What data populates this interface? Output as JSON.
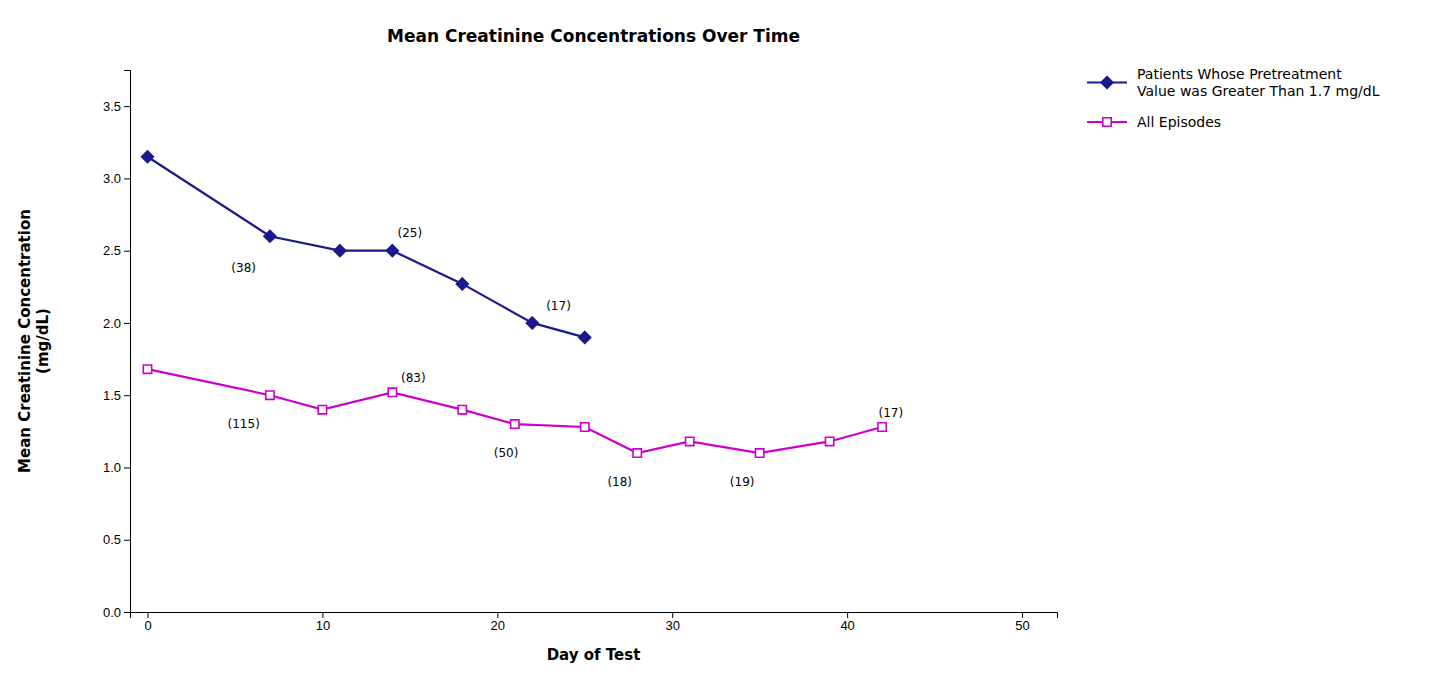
{
  "chart_data": {
    "type": "line",
    "title": "Mean Creatinine Concentrations Over Time",
    "xlabel": "Day of Test",
    "ylabel": "Mean Creatinine Concentration\n(mg/dL)",
    "xlim": [
      -1,
      52
    ],
    "ylim": [
      0,
      3.75
    ],
    "xticks": [
      0,
      10,
      20,
      30,
      40,
      50
    ],
    "yticks": [
      {
        "value": 0,
        "label": "0.0"
      },
      0.5,
      {
        "value": 1.0,
        "label": "1.0"
      },
      1.5,
      {
        "value": 2.0,
        "label": "2.0"
      },
      2.5,
      {
        "value": 3.0,
        "label": "3.0"
      },
      3.5
    ],
    "grid": false,
    "legend": "right",
    "series": [
      {
        "name": "Patients Whose Pretreatment\nValue was Greater Than 1.7 mg/dL",
        "color": "#1a1a8c",
        "marker": "diamond",
        "x": [
          0,
          7,
          11,
          14,
          18,
          22,
          25
        ],
        "values": [
          3.15,
          2.6,
          2.5,
          2.5,
          2.27,
          2.0,
          1.9
        ]
      },
      {
        "name": "All Episodes",
        "color": "#cc00cc",
        "marker": "square-open",
        "x": [
          0,
          7,
          10,
          14,
          18,
          21,
          25,
          28,
          31,
          35,
          39,
          42
        ],
        "values": [
          1.68,
          1.5,
          1.4,
          1.52,
          1.4,
          1.3,
          1.28,
          1.1,
          1.18,
          1.1,
          1.18,
          1.28
        ]
      }
    ],
    "annotations": [
      {
        "text": "(38)",
        "x": 5.5,
        "y": 2.38
      },
      {
        "text": "(25)",
        "x": 15,
        "y": 2.62
      },
      {
        "text": "(17)",
        "x": 23.5,
        "y": 2.12
      },
      {
        "text": "(115)",
        "x": 5.5,
        "y": 1.3
      },
      {
        "text": "(83)",
        "x": 15.2,
        "y": 1.62
      },
      {
        "text": "(50)",
        "x": 20.5,
        "y": 1.1
      },
      {
        "text": "(18)",
        "x": 27,
        "y": 0.9
      },
      {
        "text": "(19)",
        "x": 34,
        "y": 0.9
      },
      {
        "text": "(17)",
        "x": 42.5,
        "y": 1.38
      }
    ]
  }
}
